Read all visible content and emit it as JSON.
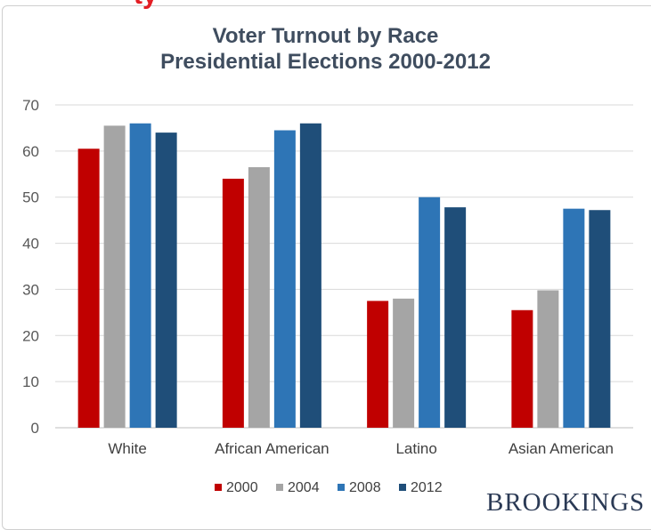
{
  "header": {
    "red_text": "ty"
  },
  "brand": {
    "name": "BROOKINGS"
  },
  "chart_data": {
    "type": "bar",
    "title": "Voter Turnout by Race",
    "subtitle": "Presidential Elections 2000-2012",
    "xlabel": "",
    "ylabel": "",
    "ylim": [
      0,
      70
    ],
    "yticks": [
      0,
      10,
      20,
      30,
      40,
      50,
      60,
      70
    ],
    "grid": true,
    "legend_position": "bottom",
    "categories": [
      "White",
      "African American",
      "Latino",
      "Asian American"
    ],
    "series": [
      {
        "name": "2000",
        "color": "#c00000",
        "values": [
          60.5,
          54,
          27.5,
          25.5
        ]
      },
      {
        "name": "2004",
        "color": "#a5a5a5",
        "values": [
          65.5,
          56.5,
          28,
          29.8
        ]
      },
      {
        "name": "2008",
        "color": "#2e75b6",
        "values": [
          66,
          64.5,
          50,
          47.5
        ]
      },
      {
        "name": "2012",
        "color": "#1f4e79",
        "values": [
          64,
          66,
          47.8,
          47.2
        ]
      }
    ]
  }
}
